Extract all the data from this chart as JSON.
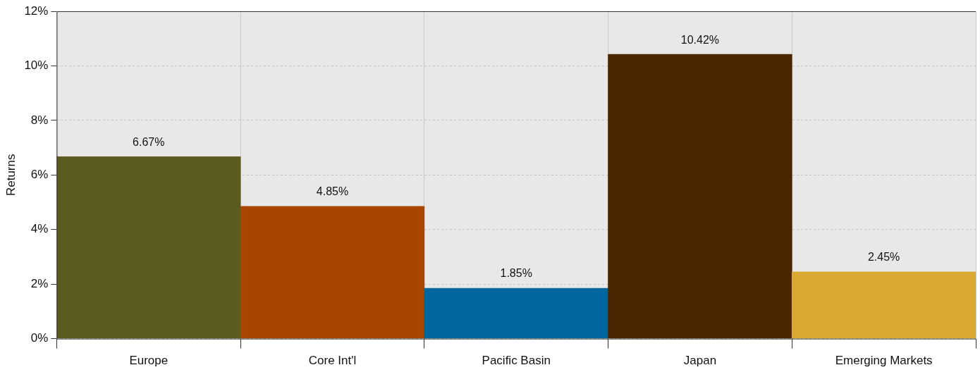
{
  "chart_data": {
    "type": "bar",
    "ylabel": "Returns",
    "categories": [
      "Europe",
      "Core Int'l",
      "Pacific Basin",
      "Japan",
      "Emerging Markets"
    ],
    "values": [
      6.67,
      4.85,
      1.85,
      10.42,
      2.45
    ],
    "colors": [
      "#5c5b20",
      "#a84600",
      "#00679e",
      "#4a2500",
      "#daa932"
    ],
    "value_labels": [
      "6.67%",
      "4.85%",
      "1.85%",
      "10.42%",
      "2.45%"
    ],
    "ylim": [
      0,
      12
    ],
    "yticks": [
      {
        "value": 0,
        "label": "0%"
      },
      {
        "value": 2,
        "label": "2%"
      },
      {
        "value": 4,
        "label": "4%"
      },
      {
        "value": 6,
        "label": "6%"
      },
      {
        "value": 8,
        "label": "8%"
      },
      {
        "value": 10,
        "label": "10%"
      },
      {
        "value": 12,
        "label": "12%"
      }
    ],
    "grid": true,
    "legend": false
  }
}
